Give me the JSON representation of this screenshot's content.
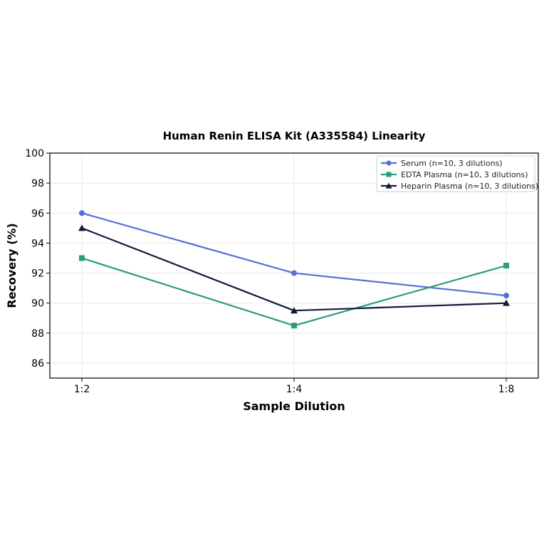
{
  "chart_data": {
    "type": "line",
    "title": "Human Renin ELISA Kit (A335584) Linearity",
    "xlabel": "Sample Dilution",
    "ylabel": "Recovery (%)",
    "categories": [
      "1:2",
      "1:4",
      "1:8"
    ],
    "ylim": [
      85,
      100
    ],
    "yticks": [
      86,
      88,
      90,
      92,
      94,
      96,
      98,
      100
    ],
    "grid": true,
    "legend_position": "top-right",
    "series": [
      {
        "name": "Serum (n=10, 3 dilutions)",
        "values": [
          96,
          92,
          90.5
        ],
        "color": "#5470d6",
        "marker": "circle"
      },
      {
        "name": "EDTA Plasma (n=10, 3 dilutions)",
        "values": [
          93,
          88.5,
          92.5
        ],
        "color": "#2a9d78",
        "marker": "square"
      },
      {
        "name": "Heparin Plasma (n=10, 3 dilutions)",
        "values": [
          95,
          89.5,
          90
        ],
        "color": "#101a3a",
        "marker": "triangle"
      }
    ]
  }
}
